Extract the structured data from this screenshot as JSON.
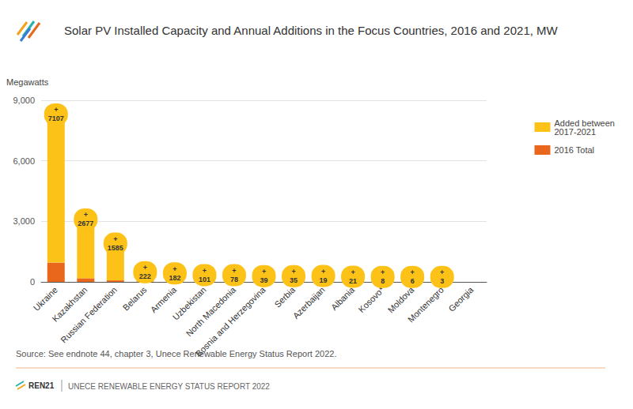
{
  "chart_data": {
    "type": "bar",
    "title": "Solar PV Installed Capacity and Annual Additions in the Focus Countries, 2016 and 2021, MW",
    "y_label": "Megawatts",
    "source": "Source: See endnote 44, chapter 3, Unece Renewable Energy Status Report 2022.",
    "footer": [
      "REN21",
      "UNECE RENEWABLE ENERGY STATUS REPORT 2022"
    ],
    "categories": [
      "Ukraine",
      "Kazakhstan",
      "Russian Federation",
      "Belarus",
      "Armenia",
      "Uzbekistan",
      "North Macedonia",
      "Bosnia and Herzegovina",
      "Serbia",
      "Azerbaijan",
      "Albania",
      "Kosovo*",
      "Moldova",
      "Montenegro",
      "Georgia"
    ],
    "series": [
      {
        "name": "2016 Total",
        "color": "#e8671c",
        "values": [
          955,
          180,
          75,
          20,
          2,
          1,
          17,
          14,
          10,
          35,
          1,
          2,
          4,
          3,
          null
        ]
      },
      {
        "name": "Added between 2017-2021",
        "color": "#fdc218",
        "values": [
          7107,
          2677,
          1585,
          222,
          182,
          101,
          78,
          39,
          35,
          19,
          21,
          8,
          6,
          3,
          null
        ],
        "value_labels": [
          "+\n7107",
          "+\n2677",
          "+\n1585",
          "+\n222",
          "+\n182",
          "+\n101",
          "+\n78",
          "+\n39",
          "+\n35",
          "+\n19",
          "+\n21",
          "+\n8",
          "+\n6",
          "+\n3",
          null
        ]
      }
    ],
    "stacked": true,
    "data_labels": true,
    "legend": "right",
    "ylim": [
      0,
      9000
    ],
    "yticks": [
      0,
      {
        "value": 3000,
        "label": "3,000"
      },
      {
        "value": 6000,
        "label": "6,000"
      },
      {
        "value": 9000,
        "label": "9,000"
      }
    ],
    "grid": true
  }
}
